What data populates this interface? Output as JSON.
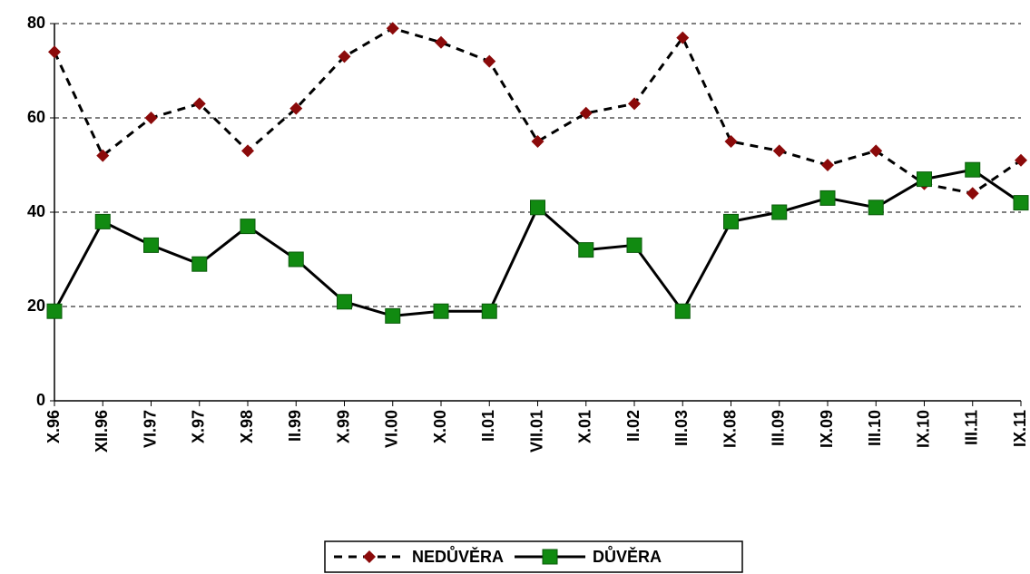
{
  "chart_data": {
    "type": "line",
    "categories": [
      "X.96",
      "XII.96",
      "VI.97",
      "X.97",
      "X.98",
      "II.99",
      "X.99",
      "VI.00",
      "X.00",
      "II.01",
      "VII.01",
      "X.01",
      "II.02",
      "III.03",
      "IX.08",
      "III.09",
      "IX.09",
      "III.10",
      "IX.10",
      "III.11",
      "IX.11"
    ],
    "series": [
      {
        "name": "NEDŮVĚRA",
        "color": "#8b0a0a",
        "values": [
          74,
          52,
          60,
          63,
          53,
          62,
          73,
          79,
          76,
          72,
          55,
          61,
          63,
          77,
          55,
          53,
          50,
          53,
          46,
          44,
          51
        ]
      },
      {
        "name": "DŮVĚRA",
        "color": "#118a11",
        "values": [
          19,
          38,
          33,
          29,
          37,
          30,
          21,
          18,
          19,
          19,
          41,
          32,
          33,
          19,
          38,
          40,
          43,
          41,
          47,
          49,
          42
        ]
      }
    ],
    "ylim": [
      0,
      80
    ],
    "yticks": [
      0,
      20,
      40,
      60,
      80
    ],
    "grid": true,
    "legend": "bottom"
  }
}
